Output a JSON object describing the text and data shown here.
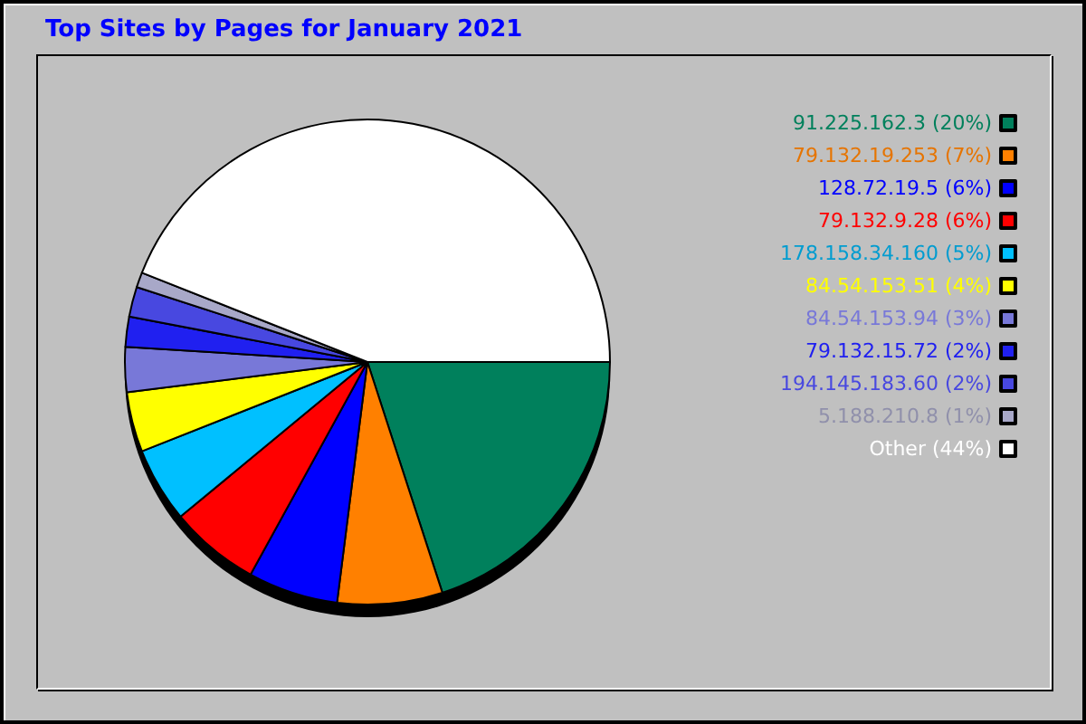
{
  "chart_data": {
    "type": "pie",
    "title": "Top Sites by Pages for January 2021",
    "categories": [
      "91.225.162.3",
      "79.132.19.253",
      "128.72.19.5",
      "79.132.9.28",
      "178.158.34.160",
      "84.54.153.51",
      "84.54.153.94",
      "79.132.15.72",
      "194.145.183.60",
      "5.188.210.8",
      "Other"
    ],
    "values": [
      20,
      7,
      6,
      6,
      5,
      4,
      3,
      2,
      2,
      1,
      44
    ],
    "value_labels": [
      "(20%)",
      "(7%)",
      "(6%)",
      "(6%)",
      "(5%)",
      "(4%)",
      "(3%)",
      "(2%)",
      "(2%)",
      "(1%)",
      "(44%)"
    ],
    "colors": [
      "#00805c",
      "#ff8000",
      "#0000ff",
      "#ff0000",
      "#00c0ff",
      "#ffff00",
      "#7878d8",
      "#2020f0",
      "#4848e0",
      "#a8a8c8",
      "#ffffff"
    ],
    "legend": "top right"
  }
}
